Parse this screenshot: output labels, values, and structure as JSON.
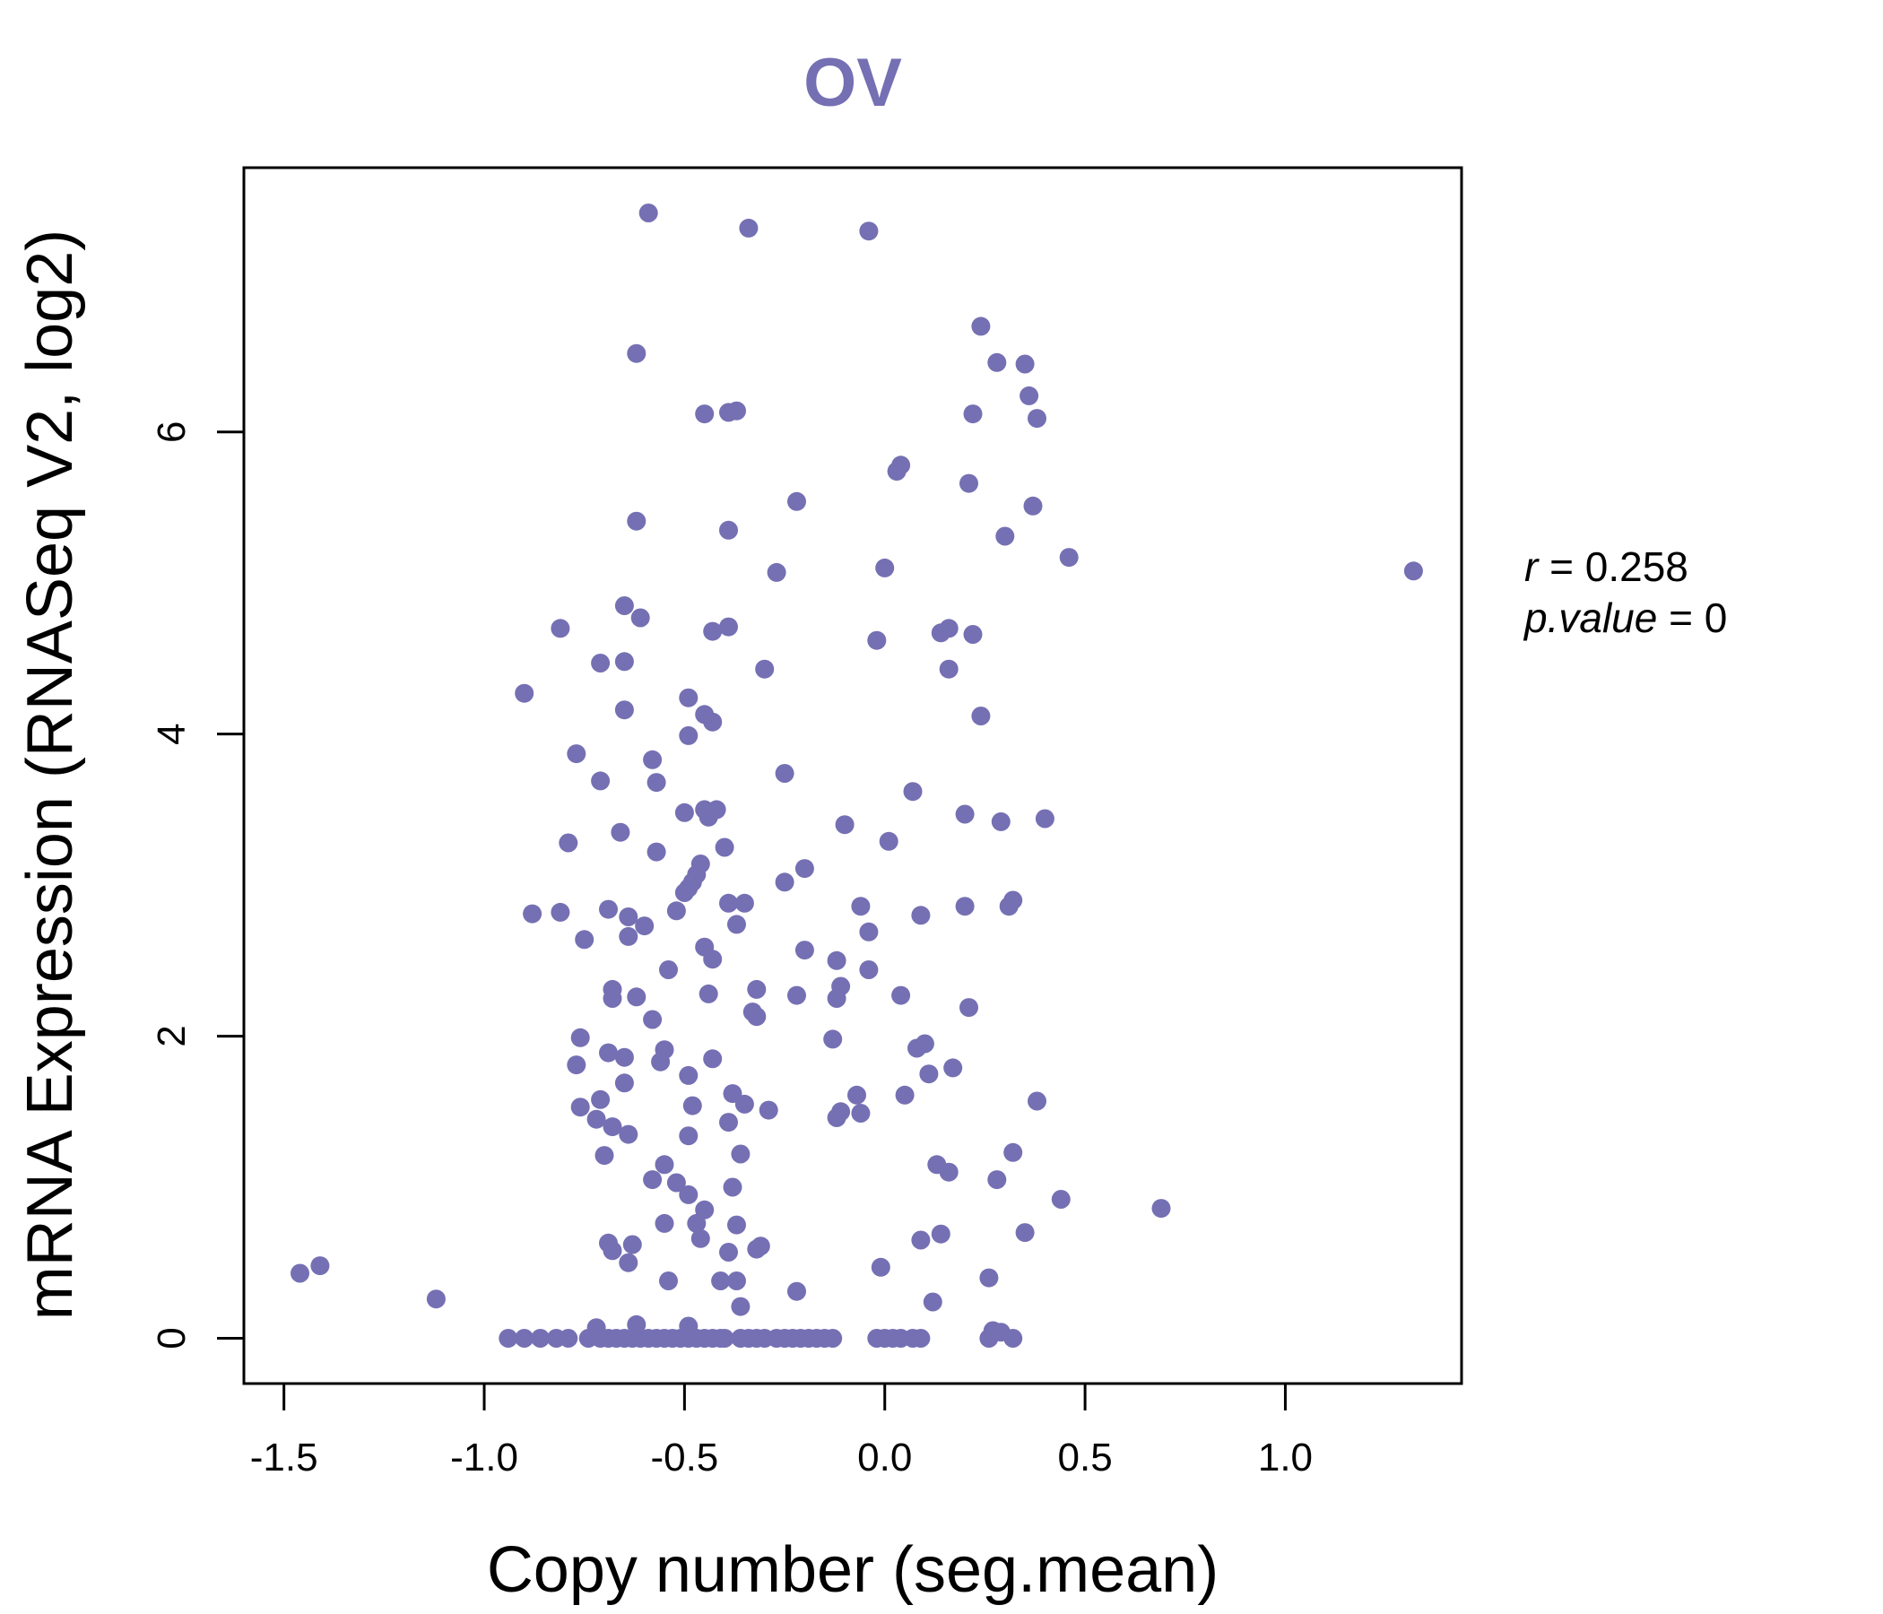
{
  "chart_data": {
    "type": "scatter",
    "title": "OV",
    "xlabel": "Copy number (seg.mean)",
    "ylabel": "mRNA Expression (RNASeq V2, log2)",
    "xlim": [
      -1.6,
      1.44
    ],
    "ylim": [
      -0.3,
      7.75
    ],
    "xticks": [
      -1.5,
      -1.0,
      -0.5,
      0.0,
      0.5,
      1.0
    ],
    "xtick_labels": [
      "-1.5",
      "-1.0",
      "-0.5",
      "0.0",
      "0.5",
      "1.0"
    ],
    "yticks": [
      0,
      2,
      4,
      6
    ],
    "ytick_labels": [
      "0",
      "2",
      "4",
      "6"
    ],
    "grid": false,
    "legend": "none",
    "color": "#7570b3",
    "annotation": {
      "r_label": "r",
      "r_value": "0.258",
      "p_label": "p.value",
      "p_value": "0"
    },
    "points": [
      [
        -0.59,
        7.45
      ],
      [
        -0.34,
        7.35
      ],
      [
        -0.04,
        7.33
      ],
      [
        -0.62,
        6.52
      ],
      [
        0.24,
        6.7
      ],
      [
        0.28,
        6.46
      ],
      [
        0.35,
        6.45
      ],
      [
        -0.45,
        6.12
      ],
      [
        -0.39,
        6.13
      ],
      [
        -0.37,
        6.14
      ],
      [
        0.22,
        6.12
      ],
      [
        0.36,
        6.24
      ],
      [
        0.38,
        6.09
      ],
      [
        0.03,
        5.74
      ],
      [
        0.04,
        5.78
      ],
      [
        0.21,
        5.66
      ],
      [
        -0.22,
        5.54
      ],
      [
        0.37,
        5.51
      ],
      [
        -0.62,
        5.41
      ],
      [
        -0.39,
        5.35
      ],
      [
        0.3,
        5.31
      ],
      [
        -0.27,
        5.07
      ],
      [
        0.0,
        5.1
      ],
      [
        0.46,
        5.17
      ],
      [
        1.32,
        5.08
      ],
      [
        -0.65,
        4.85
      ],
      [
        -0.61,
        4.77
      ],
      [
        -0.81,
        4.7
      ],
      [
        -0.39,
        4.71
      ],
      [
        -0.43,
        4.68
      ],
      [
        0.14,
        4.67
      ],
      [
        0.16,
        4.7
      ],
      [
        0.22,
        4.66
      ],
      [
        -0.02,
        4.62
      ],
      [
        -0.71,
        4.47
      ],
      [
        -0.65,
        4.48
      ],
      [
        -0.3,
        4.43
      ],
      [
        0.16,
        4.43
      ],
      [
        -0.9,
        4.27
      ],
      [
        -0.49,
        4.24
      ],
      [
        -0.65,
        4.16
      ],
      [
        -0.45,
        4.13
      ],
      [
        -0.43,
        4.08
      ],
      [
        0.24,
        4.12
      ],
      [
        -0.49,
        3.99
      ],
      [
        -0.77,
        3.87
      ],
      [
        -0.58,
        3.83
      ],
      [
        -0.71,
        3.69
      ],
      [
        -0.57,
        3.68
      ],
      [
        -0.25,
        3.74
      ],
      [
        0.07,
        3.62
      ],
      [
        -0.5,
        3.48
      ],
      [
        -0.45,
        3.5
      ],
      [
        -0.44,
        3.45
      ],
      [
        -0.42,
        3.5
      ],
      [
        0.2,
        3.47
      ],
      [
        0.29,
        3.42
      ],
      [
        0.4,
        3.44
      ],
      [
        -0.1,
        3.4
      ],
      [
        -0.66,
        3.35
      ],
      [
        -0.79,
        3.28
      ],
      [
        0.01,
        3.29
      ],
      [
        -0.4,
        3.25
      ],
      [
        -0.57,
        3.22
      ],
      [
        -0.2,
        3.11
      ],
      [
        -0.46,
        3.14
      ],
      [
        -0.47,
        3.07
      ],
      [
        -0.48,
        3.02
      ],
      [
        -0.49,
        2.98
      ],
      [
        -0.5,
        2.95
      ],
      [
        -0.25,
        3.02
      ],
      [
        -0.88,
        2.81
      ],
      [
        -0.81,
        2.82
      ],
      [
        -0.69,
        2.84
      ],
      [
        -0.64,
        2.79
      ],
      [
        -0.6,
        2.73
      ],
      [
        -0.52,
        2.83
      ],
      [
        -0.39,
        2.88
      ],
      [
        -0.35,
        2.88
      ],
      [
        -0.06,
        2.86
      ],
      [
        0.09,
        2.8
      ],
      [
        0.2,
        2.86
      ],
      [
        0.31,
        2.86
      ],
      [
        0.32,
        2.9
      ],
      [
        -0.37,
        2.74
      ],
      [
        -0.75,
        2.64
      ],
      [
        -0.64,
        2.66
      ],
      [
        -0.45,
        2.59
      ],
      [
        -0.43,
        2.51
      ],
      [
        -0.2,
        2.57
      ],
      [
        -0.04,
        2.69
      ],
      [
        -0.54,
        2.44
      ],
      [
        -0.12,
        2.5
      ],
      [
        -0.04,
        2.44
      ],
      [
        -0.68,
        2.31
      ],
      [
        -0.68,
        2.25
      ],
      [
        -0.62,
        2.26
      ],
      [
        -0.44,
        2.28
      ],
      [
        -0.32,
        2.31
      ],
      [
        -0.22,
        2.27
      ],
      [
        -0.11,
        2.33
      ],
      [
        -0.12,
        2.25
      ],
      [
        0.04,
        2.27
      ],
      [
        0.21,
        2.19
      ],
      [
        -0.58,
        2.11
      ],
      [
        -0.33,
        2.16
      ],
      [
        -0.32,
        2.13
      ],
      [
        -0.76,
        1.99
      ],
      [
        -0.13,
        1.98
      ],
      [
        -0.69,
        1.89
      ],
      [
        -0.65,
        1.86
      ],
      [
        -0.55,
        1.91
      ],
      [
        -0.56,
        1.83
      ],
      [
        -0.43,
        1.85
      ],
      [
        0.08,
        1.92
      ],
      [
        0.1,
        1.95
      ],
      [
        -0.77,
        1.81
      ],
      [
        -0.49,
        1.74
      ],
      [
        0.11,
        1.75
      ],
      [
        0.17,
        1.79
      ],
      [
        -0.65,
        1.69
      ],
      [
        -0.38,
        1.62
      ],
      [
        -0.07,
        1.61
      ],
      [
        0.05,
        1.61
      ],
      [
        -0.76,
        1.53
      ],
      [
        -0.71,
        1.58
      ],
      [
        -0.48,
        1.54
      ],
      [
        -0.35,
        1.55
      ],
      [
        -0.29,
        1.51
      ],
      [
        -0.11,
        1.5
      ],
      [
        -0.12,
        1.46
      ],
      [
        -0.06,
        1.49
      ],
      [
        0.38,
        1.57
      ],
      [
        -0.72,
        1.45
      ],
      [
        -0.68,
        1.4
      ],
      [
        -0.64,
        1.35
      ],
      [
        -0.39,
        1.43
      ],
      [
        -0.49,
        1.34
      ],
      [
        -0.7,
        1.21
      ],
      [
        -0.36,
        1.22
      ],
      [
        0.32,
        1.23
      ],
      [
        -0.55,
        1.15
      ],
      [
        0.13,
        1.15
      ],
      [
        0.16,
        1.1
      ],
      [
        -0.58,
        1.05
      ],
      [
        -0.52,
        1.03
      ],
      [
        -0.38,
        1.0
      ],
      [
        0.28,
        1.05
      ],
      [
        -0.49,
        0.95
      ],
      [
        -0.45,
        0.85
      ],
      [
        0.44,
        0.92
      ],
      [
        0.69,
        0.86
      ],
      [
        -0.55,
        0.76
      ],
      [
        -0.47,
        0.76
      ],
      [
        -0.37,
        0.75
      ],
      [
        -0.46,
        0.66
      ],
      [
        0.09,
        0.65
      ],
      [
        0.14,
        0.69
      ],
      [
        0.35,
        0.7
      ],
      [
        -0.69,
        0.63
      ],
      [
        -0.68,
        0.58
      ],
      [
        -0.63,
        0.62
      ],
      [
        -0.64,
        0.5
      ],
      [
        -0.39,
        0.57
      ],
      [
        -0.32,
        0.59
      ],
      [
        -0.31,
        0.61
      ],
      [
        -1.46,
        0.43
      ],
      [
        -1.41,
        0.48
      ],
      [
        -0.54,
        0.38
      ],
      [
        -0.41,
        0.38
      ],
      [
        -0.37,
        0.38
      ],
      [
        -0.01,
        0.47
      ],
      [
        0.26,
        0.4
      ],
      [
        -0.22,
        0.31
      ],
      [
        -1.12,
        0.26
      ],
      [
        -0.36,
        0.21
      ],
      [
        0.12,
        0.24
      ],
      [
        -0.72,
        0.07
      ],
      [
        -0.62,
        0.09
      ],
      [
        -0.49,
        0.08
      ],
      [
        0.27,
        0.05
      ],
      [
        0.29,
        0.04
      ],
      [
        -0.94,
        0.0
      ],
      [
        -0.9,
        0.0
      ],
      [
        -0.86,
        0.0
      ],
      [
        -0.82,
        0.0
      ],
      [
        -0.79,
        0.0
      ],
      [
        -0.74,
        0.0
      ],
      [
        -0.71,
        0.0
      ],
      [
        -0.69,
        0.0
      ],
      [
        -0.67,
        0.0
      ],
      [
        -0.65,
        0.0
      ],
      [
        -0.63,
        0.0
      ],
      [
        -0.61,
        0.0
      ],
      [
        -0.59,
        0.0
      ],
      [
        -0.57,
        0.0
      ],
      [
        -0.55,
        0.0
      ],
      [
        -0.53,
        0.0
      ],
      [
        -0.51,
        0.0
      ],
      [
        -0.49,
        0.0
      ],
      [
        -0.47,
        0.0
      ],
      [
        -0.45,
        0.0
      ],
      [
        -0.43,
        0.0
      ],
      [
        -0.41,
        0.0
      ],
      [
        -0.4,
        0.0
      ],
      [
        -0.36,
        0.0
      ],
      [
        -0.34,
        0.0
      ],
      [
        -0.32,
        0.0
      ],
      [
        -0.3,
        0.0
      ],
      [
        -0.27,
        0.0
      ],
      [
        -0.25,
        0.0
      ],
      [
        -0.23,
        0.0
      ],
      [
        -0.21,
        0.0
      ],
      [
        -0.19,
        0.0
      ],
      [
        -0.17,
        0.0
      ],
      [
        -0.15,
        0.0
      ],
      [
        -0.13,
        0.0
      ],
      [
        -0.02,
        0.0
      ],
      [
        0.0,
        0.0
      ],
      [
        0.02,
        0.0
      ],
      [
        0.04,
        0.0
      ],
      [
        0.07,
        0.0
      ],
      [
        0.09,
        0.0
      ],
      [
        0.26,
        0.0
      ],
      [
        0.32,
        0.0
      ]
    ]
  }
}
